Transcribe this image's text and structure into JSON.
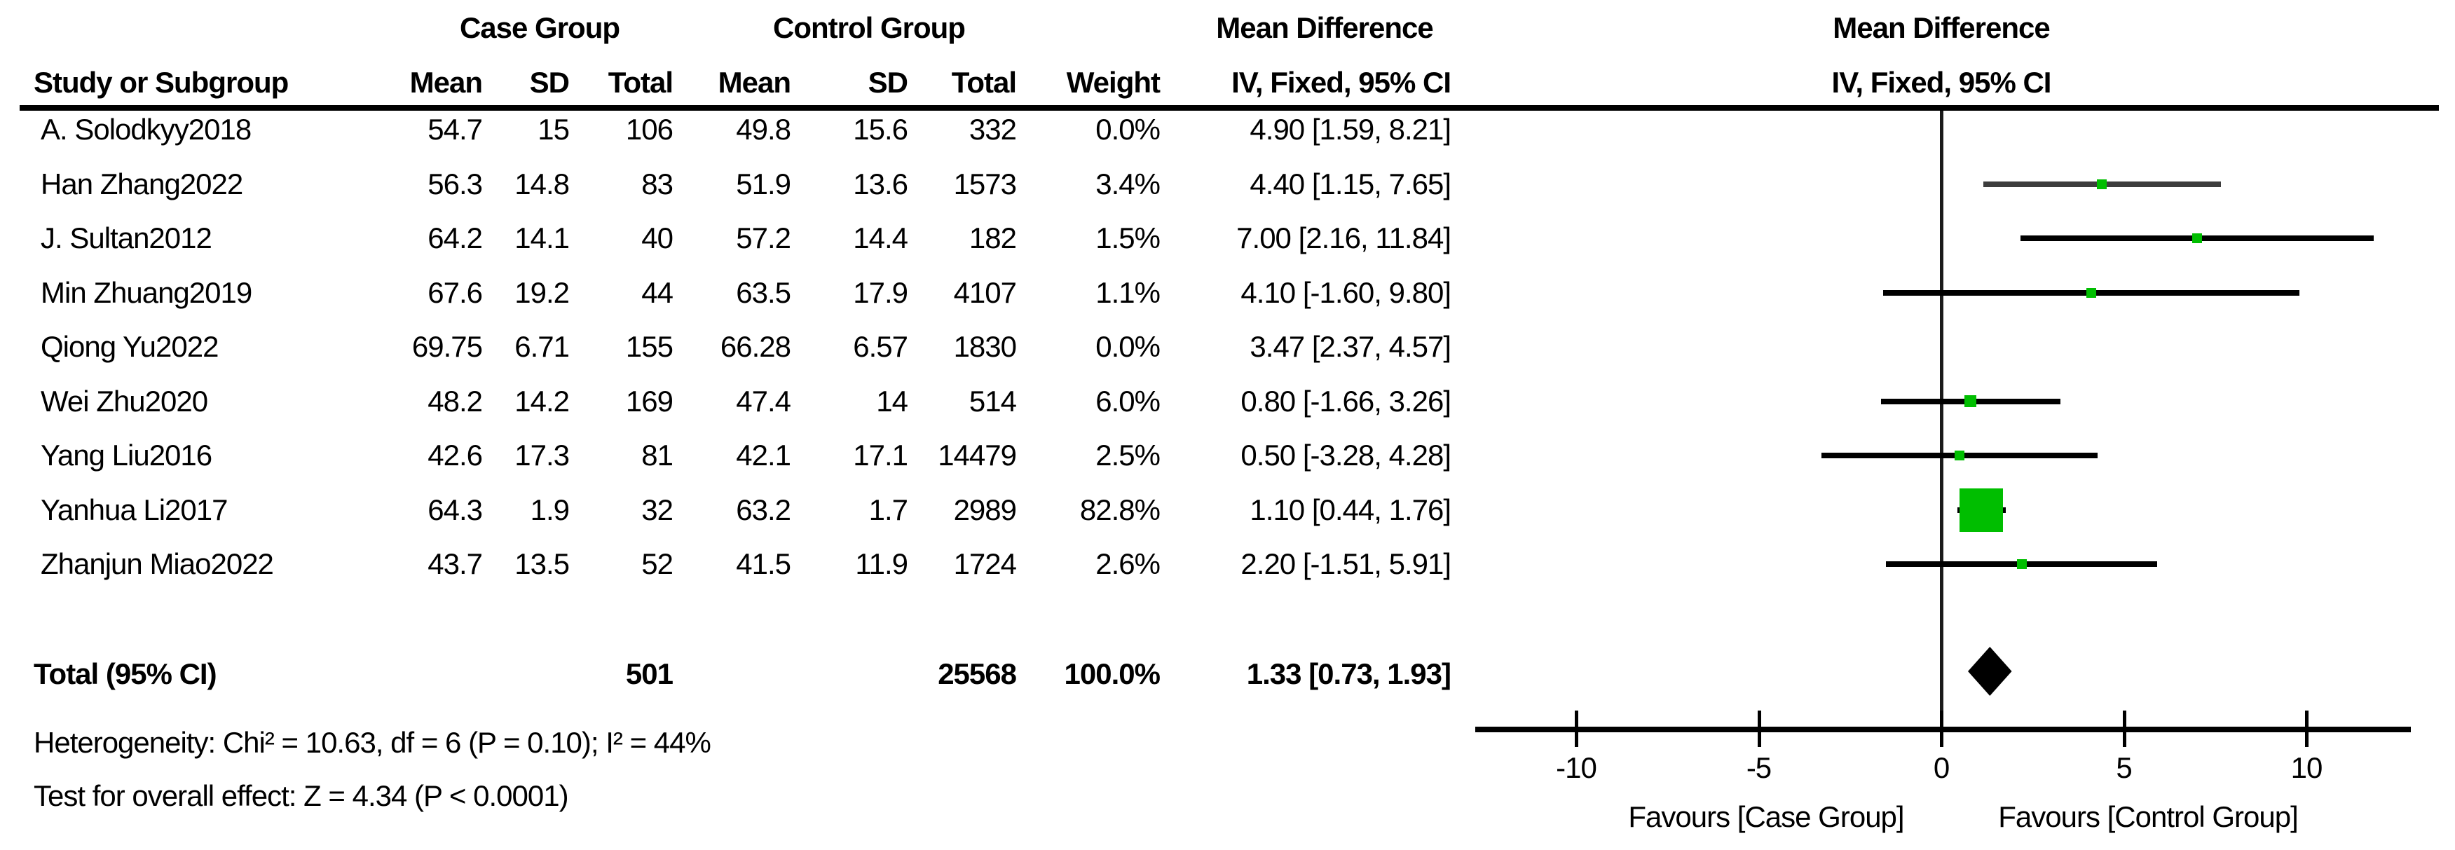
{
  "headers": {
    "study": "Study or Subgroup",
    "case_group": "Case Group",
    "control_group": "Control Group",
    "mean": "Mean",
    "sd": "SD",
    "total": "Total",
    "weight": "Weight",
    "mean_difference": "Mean Difference",
    "method": "IV, Fixed, 95% CI"
  },
  "chart_data": {
    "type": "scatter",
    "variant": "forest plot (meta-analysis, mean difference, fixed effect)",
    "title": "Mean Difference — IV, Fixed, 95% CI",
    "x_ticks": [
      -10,
      -5,
      0,
      5,
      10
    ],
    "xlim": [
      -12.7,
      12.9
    ],
    "grid": "off",
    "favours_left": "Favours [Case Group]",
    "favours_right": "Favours [Control Group]",
    "rows": [
      {
        "study": "A. Solodkyy2018",
        "mean1": "54.7",
        "sd1": "15",
        "total1": "106",
        "mean2": "49.8",
        "sd2": "15.6",
        "total2": "332",
        "weight": "0.0%",
        "weight_pct": 0.0,
        "md": 4.9,
        "ci_low": 1.59,
        "ci_high": 8.21,
        "ci_text": "4.90 [1.59, 8.21]",
        "plotted": false
      },
      {
        "study": "Han Zhang2022",
        "mean1": "56.3",
        "sd1": "14.8",
        "total1": "83",
        "mean2": "51.9",
        "sd2": "13.6",
        "total2": "1573",
        "weight": "3.4%",
        "weight_pct": 3.4,
        "md": 4.4,
        "ci_low": 1.15,
        "ci_high": 7.65,
        "ci_text": "4.40 [1.15, 7.65]",
        "plotted": true,
        "line_shade": "muted"
      },
      {
        "study": "J. Sultan2012",
        "mean1": "64.2",
        "sd1": "14.1",
        "total1": "40",
        "mean2": "57.2",
        "sd2": "14.4",
        "total2": "182",
        "weight": "1.5%",
        "weight_pct": 1.5,
        "md": 7.0,
        "ci_low": 2.16,
        "ci_high": 11.84,
        "ci_text": "7.00 [2.16, 11.84]",
        "plotted": true
      },
      {
        "study": "Min Zhuang2019",
        "mean1": "67.6",
        "sd1": "19.2",
        "total1": "44",
        "mean2": "63.5",
        "sd2": "17.9",
        "total2": "4107",
        "weight": "1.1%",
        "weight_pct": 1.1,
        "md": 4.1,
        "ci_low": -1.6,
        "ci_high": 9.8,
        "ci_text": "4.10 [-1.60, 9.80]",
        "plotted": true
      },
      {
        "study": "Qiong Yu2022",
        "mean1": "69.75",
        "sd1": "6.71",
        "total1": "155",
        "mean2": "66.28",
        "sd2": "6.57",
        "total2": "1830",
        "weight": "0.0%",
        "weight_pct": 0.0,
        "md": 3.47,
        "ci_low": 2.37,
        "ci_high": 4.57,
        "ci_text": "3.47 [2.37, 4.57]",
        "plotted": false
      },
      {
        "study": "Wei Zhu2020",
        "mean1": "48.2",
        "sd1": "14.2",
        "total1": "169",
        "mean2": "47.4",
        "sd2": "14",
        "total2": "514",
        "weight": "6.0%",
        "weight_pct": 6.0,
        "md": 0.8,
        "ci_low": -1.66,
        "ci_high": 3.26,
        "ci_text": "0.80 [-1.66, 3.26]",
        "plotted": true
      },
      {
        "study": "Yang Liu2016",
        "mean1": "42.6",
        "sd1": "17.3",
        "total1": "81",
        "mean2": "42.1",
        "sd2": "17.1",
        "total2": "14479",
        "weight": "2.5%",
        "weight_pct": 2.5,
        "md": 0.5,
        "ci_low": -3.28,
        "ci_high": 4.28,
        "ci_text": "0.50 [-3.28, 4.28]",
        "plotted": true
      },
      {
        "study": "Yanhua Li2017",
        "mean1": "64.3",
        "sd1": "1.9",
        "total1": "32",
        "mean2": "63.2",
        "sd2": "1.7",
        "total2": "2989",
        "weight": "82.8%",
        "weight_pct": 82.8,
        "md": 1.1,
        "ci_low": 0.44,
        "ci_high": 1.76,
        "ci_text": "1.10 [0.44, 1.76]",
        "plotted": true
      },
      {
        "study": "Zhanjun Miao2022",
        "mean1": "43.7",
        "sd1": "13.5",
        "total1": "52",
        "mean2": "41.5",
        "sd2": "11.9",
        "total2": "1724",
        "weight": "2.6%",
        "weight_pct": 2.6,
        "md": 2.2,
        "ci_low": -1.51,
        "ci_high": 5.91,
        "ci_text": "2.20 [-1.51, 5.91]",
        "plotted": true
      }
    ],
    "total": {
      "label": "Total (95% CI)",
      "total1": "501",
      "total2": "25568",
      "weight": "100.0%",
      "md": 1.33,
      "ci_low": 0.73,
      "ci_high": 1.93,
      "ci_text": "1.33 [0.73, 1.93]"
    }
  },
  "footer": {
    "heterogeneity": "Heterogeneity: Chi² = 10.63, df = 6 (P = 0.10); I² = 44%",
    "overall_effect": "Test for overall effect: Z = 4.34 (P < 0.0001)"
  },
  "colors": {
    "marker_green": "#00be00",
    "muted_line": "#3d3d3d",
    "text": "#000000"
  }
}
